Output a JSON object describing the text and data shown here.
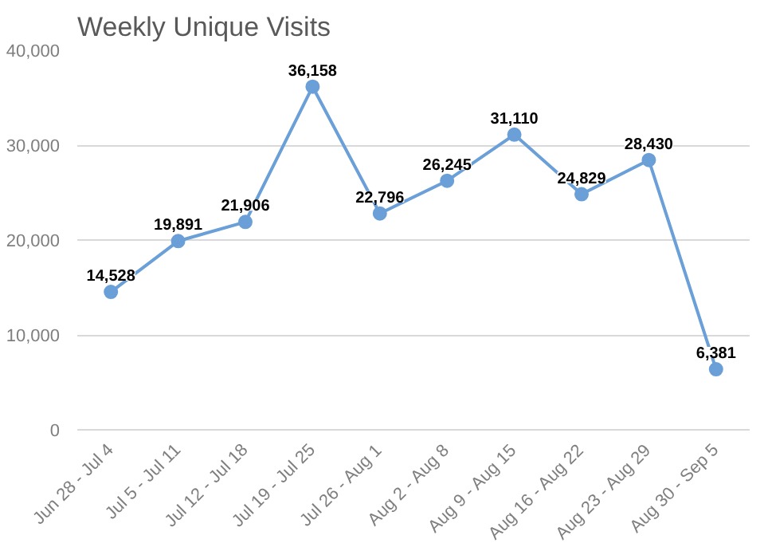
{
  "chart_data": {
    "type": "line",
    "title": "Weekly Unique Visits",
    "categories": [
      "Jun 28 - Jul 4",
      "Jul 5 - Jul 11",
      "Jul 12 - Jul 18",
      "Jul 19 - Jul 25",
      "Jul 26 - Aug 1",
      "Aug 2 - Aug 8",
      "Aug 9 - Aug 15",
      "Aug 16 - Aug 22",
      "Aug 23 - Aug 29",
      "Aug 30 - Sep 5"
    ],
    "series": [
      {
        "color": "#6a9fd8",
        "values": [
          14528,
          19891,
          21906,
          36158,
          22796,
          26245,
          31110,
          24829,
          28430,
          6381
        ],
        "value_labels": [
          "14,528",
          "19,891",
          "21,906",
          "36,158",
          "22,796",
          "26,245",
          "31,110",
          "24,829",
          "28,430",
          "6,381"
        ]
      }
    ],
    "ylim": [
      0,
      40000
    ],
    "yticks": [
      {
        "value": 0,
        "label": "0"
      },
      {
        "value": 10000,
        "label": "10,000"
      },
      {
        "value": 20000,
        "label": "20,000"
      },
      {
        "value": 30000,
        "label": "30,000"
      },
      {
        "value": 40000,
        "label": "40,000"
      }
    ],
    "grid": "y",
    "marker": "circle",
    "line_style": "solid"
  }
}
